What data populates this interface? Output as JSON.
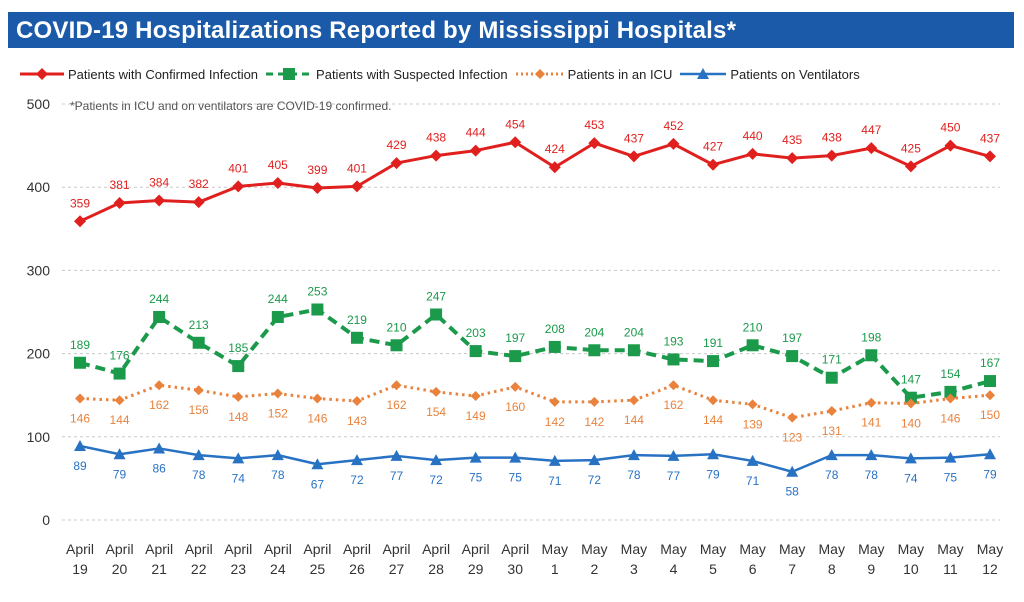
{
  "title": "COVID-19 Hospitalizations Reported by Mississippi Hospitals*",
  "footnote": "*Patients in ICU and on ventilators are COVID-19 confirmed.",
  "colors": {
    "title_bg": "#1a5aa8",
    "confirmed": "#e0201e",
    "suspected": "#1a9a4a",
    "icu": "#e8823c",
    "ventilators": "#2872c4",
    "grid": "#c8c8c8"
  },
  "chart_data": {
    "type": "line",
    "ylim": [
      0,
      500
    ],
    "yticks": [
      0,
      100,
      200,
      300,
      400,
      500
    ],
    "grid": "horizontal dashed",
    "legend_position": "top",
    "categories": [
      [
        "April",
        "19"
      ],
      [
        "April",
        "20"
      ],
      [
        "April",
        "21"
      ],
      [
        "April",
        "22"
      ],
      [
        "April",
        "23"
      ],
      [
        "April",
        "24"
      ],
      [
        "April",
        "25"
      ],
      [
        "April",
        "26"
      ],
      [
        "April",
        "27"
      ],
      [
        "April",
        "28"
      ],
      [
        "April",
        "29"
      ],
      [
        "April",
        "30"
      ],
      [
        "May",
        "1"
      ],
      [
        "May",
        "2"
      ],
      [
        "May",
        "3"
      ],
      [
        "May",
        "4"
      ],
      [
        "May",
        "5"
      ],
      [
        "May",
        "6"
      ],
      [
        "May",
        "7"
      ],
      [
        "May",
        "8"
      ],
      [
        "May",
        "9"
      ],
      [
        "May",
        "10"
      ],
      [
        "May",
        "11"
      ],
      [
        "May",
        "12"
      ]
    ],
    "series": [
      {
        "name": "Patients with Confirmed Infection",
        "key": "confirmed",
        "marker": "diamond",
        "line": "solid",
        "label_pos": "above",
        "values": [
          359,
          381,
          384,
          382,
          401,
          405,
          399,
          401,
          429,
          438,
          444,
          454,
          424,
          453,
          437,
          452,
          427,
          440,
          435,
          438,
          447,
          425,
          450,
          437
        ]
      },
      {
        "name": "Patients with Suspected Infection",
        "key": "suspected",
        "marker": "square",
        "line": "dashed",
        "label_pos": "above",
        "values": [
          189,
          176,
          244,
          213,
          185,
          244,
          253,
          219,
          210,
          247,
          203,
          197,
          208,
          204,
          204,
          193,
          191,
          210,
          197,
          171,
          198,
          147,
          154,
          167
        ]
      },
      {
        "name": "Patients in an ICU",
        "key": "icu",
        "marker": "diamond-small",
        "line": "dotted",
        "label_pos": "below",
        "values": [
          146,
          144,
          162,
          156,
          148,
          152,
          146,
          143,
          162,
          154,
          149,
          160,
          142,
          142,
          144,
          162,
          144,
          139,
          123,
          131,
          141,
          140,
          146,
          150
        ]
      },
      {
        "name": "Patients on Ventilators",
        "key": "ventilators",
        "marker": "triangle",
        "line": "solid",
        "label_pos": "below",
        "values": [
          89,
          79,
          86,
          78,
          74,
          78,
          67,
          72,
          77,
          72,
          75,
          75,
          71,
          72,
          78,
          77,
          79,
          71,
          58,
          78,
          78,
          74,
          75,
          79
        ]
      }
    ]
  }
}
